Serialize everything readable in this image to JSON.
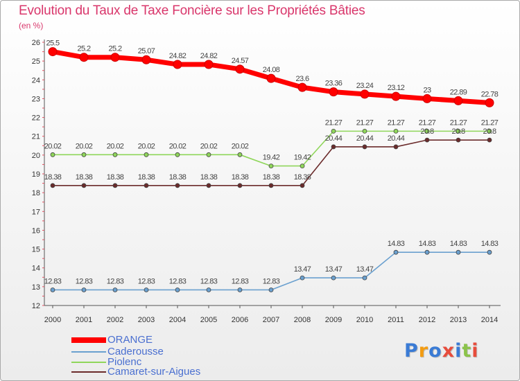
{
  "title": "Evolution du Taux de Taxe Foncière sur les Propriétés Bâties",
  "unit_label": "(en %)",
  "logo": {
    "text": "Proxiti",
    "colors": [
      "#3a7bd5",
      "#f39c12",
      "#3a7bd5",
      "#e74c3c",
      "#3a7bd5",
      "#8bc34a",
      "#e74c3c"
    ]
  },
  "chart_data": {
    "type": "line",
    "x": [
      "2000",
      "2001",
      "2002",
      "2003",
      "2004",
      "2005",
      "2006",
      "2007",
      "2008",
      "2009",
      "2010",
      "2011",
      "2012",
      "2013",
      "2014"
    ],
    "ylim": [
      12,
      26
    ],
    "yticks": [
      "12",
      "13",
      "14",
      "15",
      "16",
      "17",
      "18",
      "19",
      "20",
      "21",
      "22",
      "23",
      "24",
      "25",
      "26"
    ],
    "grid": false,
    "legend_position": "bottom-left",
    "series": [
      {
        "name": "ORANGE",
        "color": "#ff0000",
        "values": [
          25.5,
          25.2,
          25.2,
          25.07,
          24.82,
          24.82,
          24.57,
          24.08,
          23.6,
          23.36,
          23.24,
          23.12,
          23,
          22.89,
          22.78
        ],
        "labels": [
          "25.5",
          "25.2",
          "25.2",
          "25.07",
          "24.82",
          "24.82",
          "24.57",
          "24.08",
          "23.6",
          "23.36",
          "23.24",
          "23.12",
          "23",
          "22.89",
          "22.78"
        ]
      },
      {
        "name": "Caderousse",
        "color": "#6aa0cf",
        "values": [
          12.83,
          12.83,
          12.83,
          12.83,
          12.83,
          12.83,
          12.83,
          12.83,
          13.47,
          13.47,
          13.47,
          14.83,
          14.83,
          14.83,
          14.83
        ],
        "labels": [
          "12.83",
          "12.83",
          "12.83",
          "12.83",
          "12.83",
          "12.83",
          "12.83",
          "12.83",
          "13.47",
          "13.47",
          "13.47",
          "14.83",
          "14.83",
          "14.83",
          "14.83"
        ]
      },
      {
        "name": "Piolenc",
        "color": "#8fd65a",
        "values": [
          20.02,
          20.02,
          20.02,
          20.02,
          20.02,
          20.02,
          20.02,
          19.42,
          19.42,
          21.27,
          21.27,
          21.27,
          21.27,
          21.27,
          21.27
        ],
        "labels": [
          "20.02",
          "20.02",
          "20.02",
          "20.02",
          "20.02",
          "20.02",
          "20.02",
          "19.42",
          "19.42",
          "21.27",
          "21.27",
          "21.27",
          "21.27",
          "21.27",
          "21.27"
        ]
      },
      {
        "name": "Camaret-sur-Aigues",
        "color": "#6b2b2b",
        "values": [
          18.38,
          18.38,
          18.38,
          18.38,
          18.38,
          18.38,
          18.38,
          18.38,
          18.38,
          20.44,
          20.44,
          20.44,
          20.8,
          20.8,
          20.8
        ],
        "labels": [
          "18.38",
          "18.38",
          "18.38",
          "18.38",
          "18.38",
          "18.38",
          "18.38",
          "18.38",
          "18.38",
          "20.44",
          "20.44",
          "20.44",
          "20.8",
          "20.8",
          "20.8"
        ]
      }
    ]
  }
}
